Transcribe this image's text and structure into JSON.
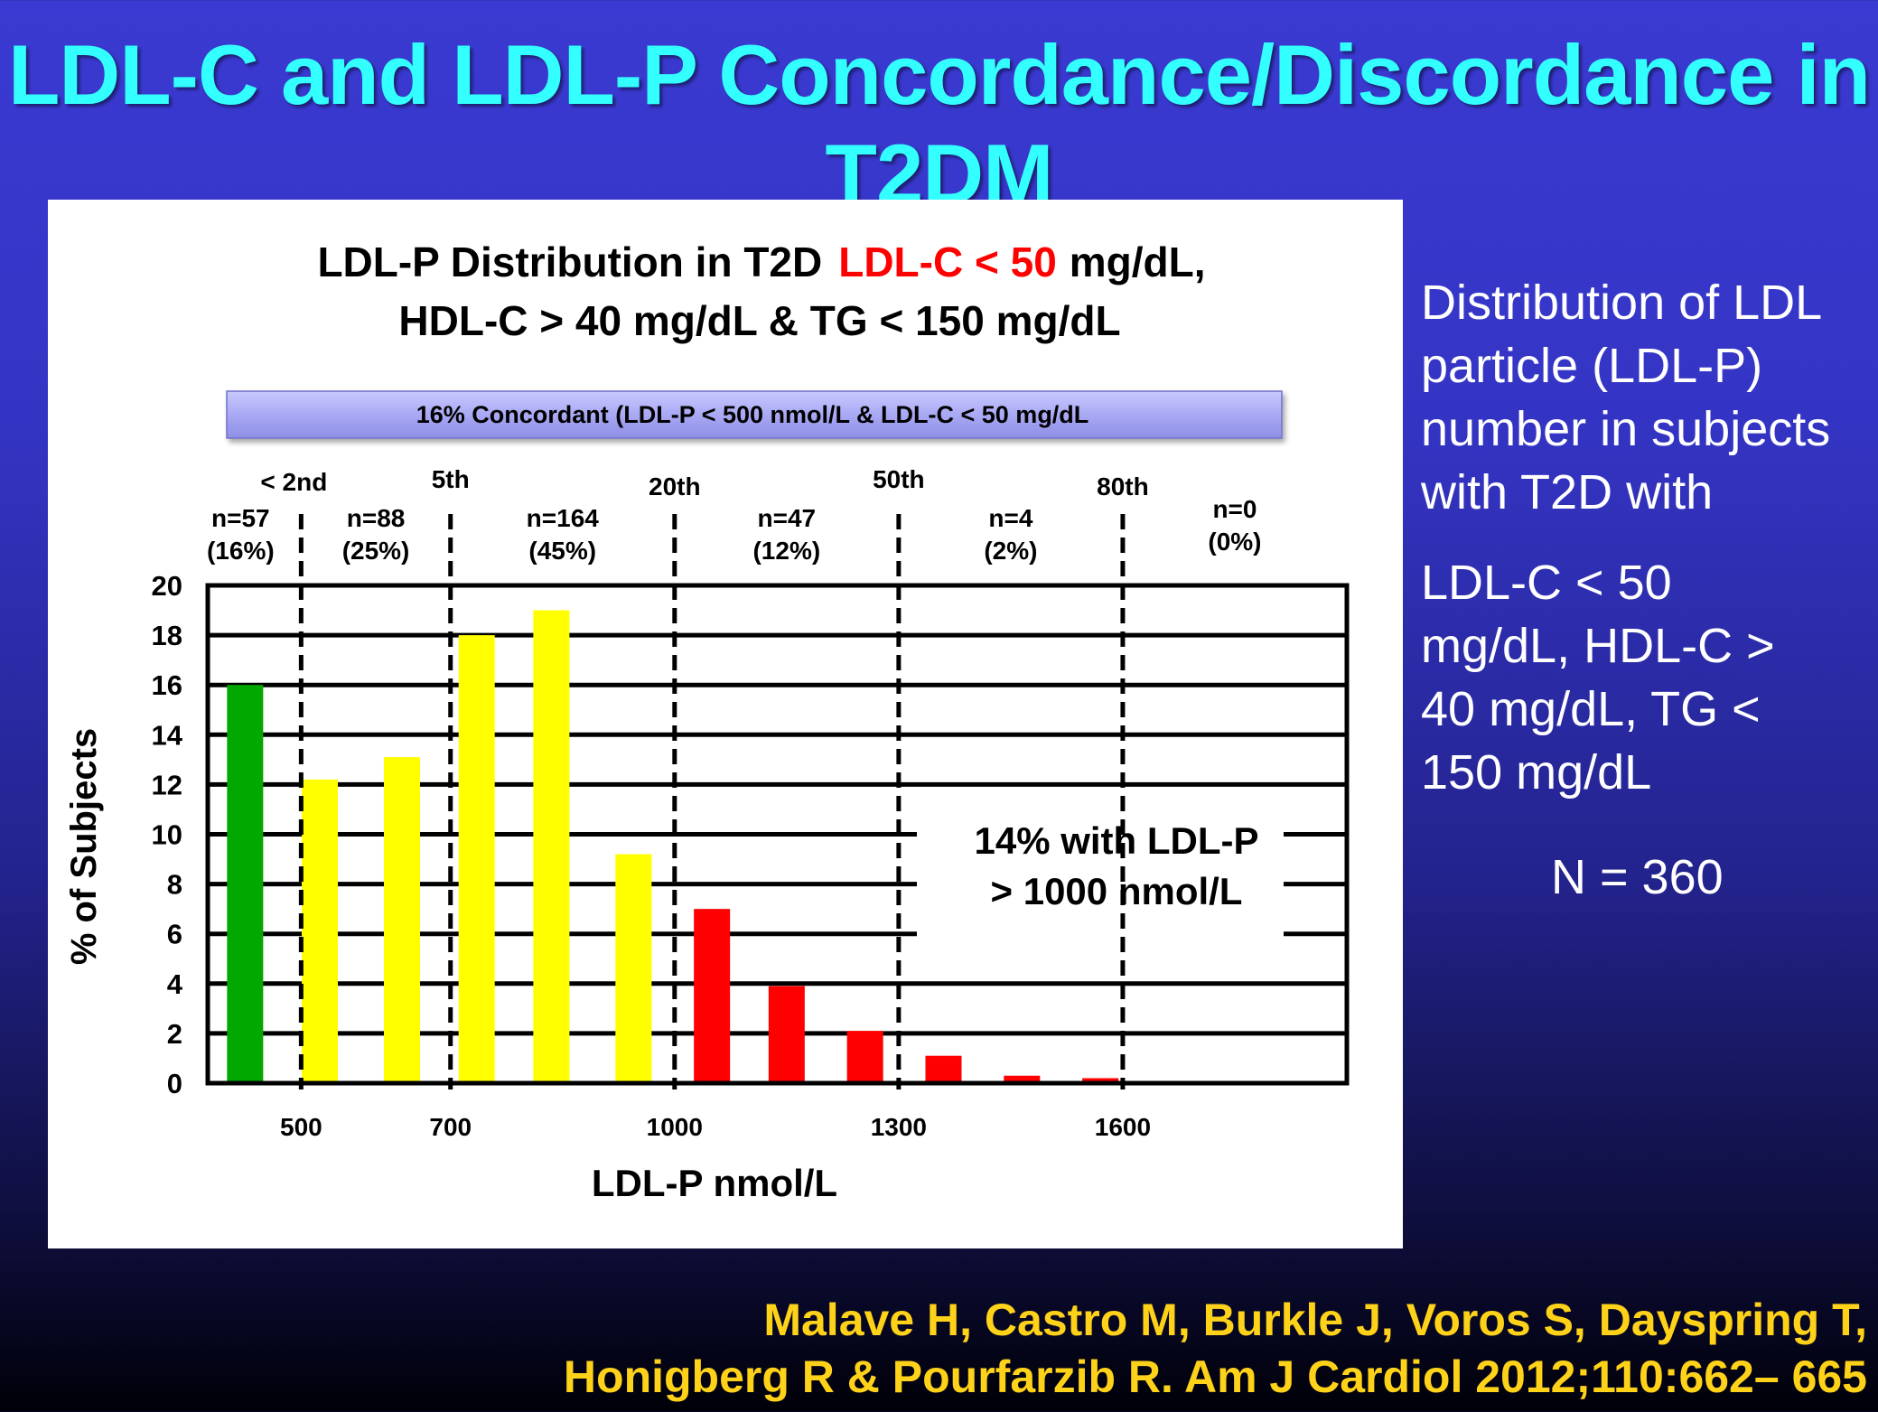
{
  "slide": {
    "title": "LDL-C and LDL-P Concordance/Discordance in T2DM",
    "side_text": {
      "line1": "Distribution of LDL",
      "line2": "particle (LDL-P)",
      "line3": "number in subjects",
      "line4": "with T2D with",
      "line5": "LDL-C < 50",
      "line6": "mg/dL, HDL-C >",
      "line7": "40 mg/dL, TG <",
      "line8": "150 mg/dL",
      "n_label": "N = 360"
    },
    "citation": {
      "line1": "Malave H, Castro M, Burkle J, Voros S, Dayspring T,",
      "line2": "Honigberg R & Pourfarzib R. Am J Cardiol 2012;110:662– 665"
    },
    "colors": {
      "title": "#33ffff",
      "citation": "#ffd21a",
      "highlight_red": "#ff0000"
    }
  },
  "chart_data": {
    "type": "bar",
    "title_line1_prefix": "LDL-P Distribution in T2D",
    "title_line1_highlight": "LDL-C < 50",
    "title_line1_suffix": "mg/dL,",
    "title_line2": "HDL-C > 40 mg/dL & TG < 150 mg/dL",
    "concordant_banner": "16% Concordant (LDL-P < 500 nmol/L & LDL-C < 50 mg/dL",
    "xlabel": "LDL-P nmol/L",
    "ylabel": "% of Subjects",
    "ylim": [
      0,
      20
    ],
    "y_ticks": [
      0,
      2,
      4,
      6,
      8,
      10,
      12,
      14,
      16,
      18,
      20
    ],
    "x_domain": [
      375,
      1900
    ],
    "x_tick_labels": [
      {
        "value": 500,
        "label": "500"
      },
      {
        "value": 700,
        "label": "700"
      },
      {
        "value": 1000,
        "label": "1000"
      },
      {
        "value": 1300,
        "label": "1300"
      },
      {
        "value": 1600,
        "label": "1600"
      }
    ],
    "bars": [
      {
        "x": 425,
        "value": 16,
        "color": "#00a800"
      },
      {
        "x": 525,
        "value": 12.2,
        "color": "#ffff00"
      },
      {
        "x": 635,
        "value": 13.1,
        "color": "#ffff00"
      },
      {
        "x": 735,
        "value": 18,
        "color": "#ffff00"
      },
      {
        "x": 835,
        "value": 19,
        "color": "#ffff00"
      },
      {
        "x": 945,
        "value": 9.2,
        "color": "#ffff00"
      },
      {
        "x": 1050,
        "value": 7,
        "color": "#ff0000"
      },
      {
        "x": 1150,
        "value": 3.9,
        "color": "#ff0000"
      },
      {
        "x": 1255,
        "value": 2.1,
        "color": "#ff0000"
      },
      {
        "x": 1360,
        "value": 1.1,
        "color": "#ff0000"
      },
      {
        "x": 1465,
        "value": 0.3,
        "color": "#ff0000"
      },
      {
        "x": 1570,
        "value": 0.2,
        "color": "#ff0000"
      }
    ],
    "percentile_lines": [
      {
        "x": 500,
        "label": "< 2nd"
      },
      {
        "x": 700,
        "label": "5th"
      },
      {
        "x": 1000,
        "label": "20th"
      },
      {
        "x": 1300,
        "label": "50th"
      },
      {
        "x": 1600,
        "label": "80th"
      }
    ],
    "group_counts": [
      {
        "n": "n=57",
        "pct": "(16%)"
      },
      {
        "n": "n=88",
        "pct": "(25%)"
      },
      {
        "n": "n=164",
        "pct": "(45%)"
      },
      {
        "n": "n=47",
        "pct": "(12%)"
      },
      {
        "n": "n=4",
        "pct": "(2%)"
      },
      {
        "n": "n=0",
        "pct": "(0%)"
      }
    ],
    "annotation": {
      "line1": "14% with LDL-P",
      "line2": "> 1000 nmol/L"
    },
    "grid": true
  }
}
